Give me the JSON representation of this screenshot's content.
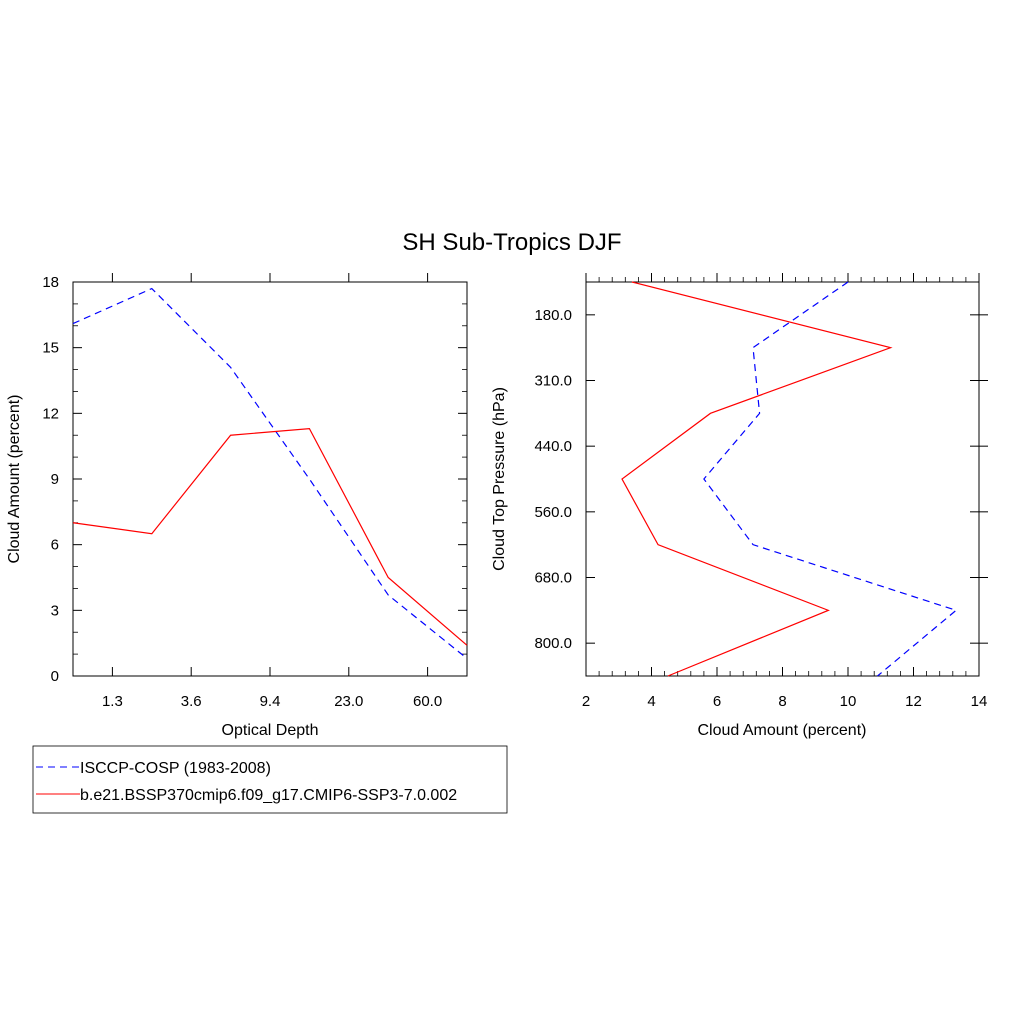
{
  "title": "SH Sub-Tropics DJF",
  "colors": {
    "obs": "#0000ff",
    "model": "#ff0000"
  },
  "legend": [
    {
      "label": "ISCCP-COSP (1983-2008)",
      "style": "dashed",
      "color": "#0000ff"
    },
    {
      "label": "b.e21.BSSP370cmip6.f09_g17.CMIP6-SSP3-7.0.002",
      "style": "solid",
      "color": "#ff0000"
    }
  ],
  "chart_data": [
    {
      "type": "line",
      "xlabel": "Optical Depth",
      "ylabel": "Cloud Amount (percent)",
      "x_tick_labels": [
        "1.3",
        "3.6",
        "9.4",
        "23.0",
        "60.0"
      ],
      "y_ticks": [
        0,
        3,
        6,
        9,
        12,
        15,
        18
      ],
      "ylim": [
        0,
        18
      ],
      "series": [
        {
          "name": "ISCCP-COSP (1983-2008)",
          "style": "dashed",
          "values": [
            16.1,
            17.7,
            14.1,
            9.0,
            3.7,
            0.8
          ]
        },
        {
          "name": "b.e21.BSSP370cmip6.f09_g17.CMIP6-SSP3-7.0.002",
          "style": "solid",
          "values": [
            7.0,
            6.5,
            11.0,
            11.3,
            4.5,
            1.4
          ]
        }
      ]
    },
    {
      "type": "line",
      "xlabel": "Cloud Amount (percent)",
      "ylabel": "Cloud Top Pressure (hPa)",
      "x_ticks": [
        2,
        4,
        6,
        8,
        10,
        12,
        14
      ],
      "xlim": [
        2,
        14
      ],
      "y_tick_labels": [
        "180.0",
        "310.0",
        "440.0",
        "560.0",
        "680.0",
        "800.0"
      ],
      "series": [
        {
          "name": "ISCCP-COSP (1983-2008)",
          "style": "dashed",
          "values": [
            10.0,
            7.1,
            7.3,
            5.6,
            7.1,
            13.3,
            10.9
          ]
        },
        {
          "name": "b.e21.BSSP370cmip6.f09_g17.CMIP6-SSP3-7.0.002",
          "style": "solid",
          "values": [
            3.4,
            11.3,
            5.8,
            3.1,
            4.2,
            9.4,
            4.5
          ]
        }
      ]
    }
  ]
}
